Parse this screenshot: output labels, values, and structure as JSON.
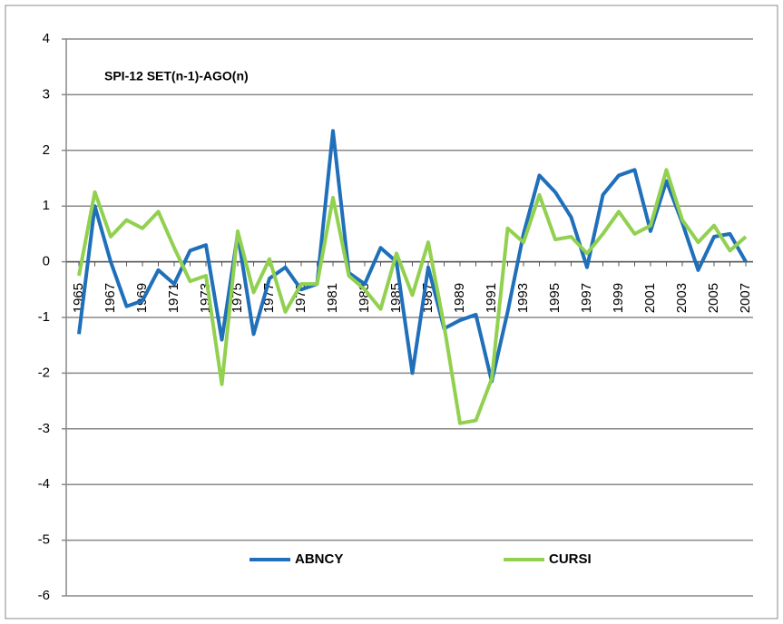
{
  "chart_data": {
    "type": "line",
    "title": "SPI-12 SET(n-1)-AGO(n)",
    "categories": [
      "1965",
      null,
      "1967",
      null,
      "1969",
      null,
      "1971",
      null,
      "1973",
      null,
      "1975",
      null,
      "1977",
      null,
      "1979",
      null,
      "1981",
      null,
      "1983",
      null,
      "1985",
      null,
      "1987",
      null,
      "1989",
      null,
      "1991",
      null,
      "1993",
      null,
      "1995",
      null,
      "1997",
      null,
      "1999",
      null,
      "2001",
      null,
      "2003",
      null,
      "2005",
      null,
      "2007"
    ],
    "series": [
      {
        "name": "ABNCY",
        "color": "#1f6fba",
        "values": [
          -1.3,
          1.0,
          0.0,
          -0.8,
          -0.7,
          -0.15,
          -0.4,
          0.2,
          0.3,
          -1.4,
          0.5,
          -1.3,
          -0.3,
          -0.1,
          -0.5,
          -0.4,
          2.35,
          -0.2,
          -0.4,
          0.25,
          0.0,
          -2.0,
          -0.1,
          -1.2,
          -1.05,
          -0.95,
          -2.15,
          -0.9,
          0.5,
          1.55,
          1.25,
          0.8,
          -0.1,
          1.2,
          1.55,
          1.65,
          0.55,
          1.45,
          0.7,
          -0.15,
          0.45,
          0.5,
          0.0
        ]
      },
      {
        "name": "CURSI",
        "color": "#92d050",
        "values": [
          -0.25,
          1.25,
          0.45,
          0.75,
          0.6,
          0.9,
          0.25,
          -0.35,
          -0.25,
          -2.2,
          0.55,
          -0.55,
          0.05,
          -0.9,
          -0.4,
          -0.4,
          1.15,
          -0.25,
          -0.5,
          -0.85,
          0.15,
          -0.6,
          0.35,
          -1.15,
          -2.9,
          -2.85,
          -2.1,
          0.6,
          0.35,
          1.2,
          0.4,
          0.45,
          0.15,
          0.5,
          0.9,
          0.5,
          0.65,
          1.65,
          0.75,
          0.35,
          0.65,
          0.2,
          0.45
        ]
      }
    ],
    "ylim": [
      -6,
      4
    ],
    "yticks": [
      -6,
      -5,
      -4,
      -3,
      -2,
      -1,
      0,
      1,
      2,
      3,
      4
    ],
    "grid": true,
    "legend": "bottom"
  }
}
